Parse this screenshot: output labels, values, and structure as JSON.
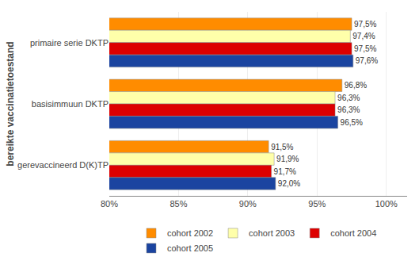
{
  "chart_data": {
    "type": "bar",
    "orientation": "horizontal",
    "categories": [
      "primaire serie DKTP",
      "basisimmuun DKTP",
      "gerevaccineerd D(K)TP"
    ],
    "series": [
      {
        "name": "cohort 2002",
        "color": "#FF8C00",
        "values": [
          97.5,
          96.8,
          91.5
        ],
        "value_labels": [
          "97,5%",
          "96,8%",
          "91,5%"
        ]
      },
      {
        "name": "cohort 2003",
        "color": "#FFFFAA",
        "values": [
          97.4,
          96.3,
          91.9
        ],
        "value_labels": [
          "97,4%",
          "96,3%",
          "91,9%"
        ]
      },
      {
        "name": "cohort 2004",
        "color": "#DD0000",
        "values": [
          97.5,
          96.3,
          91.7
        ],
        "value_labels": [
          "97,5%",
          "96,3%",
          "91,7%"
        ]
      },
      {
        "name": "cohort 2005",
        "color": "#1B44A0",
        "values": [
          97.6,
          96.5,
          92.0
        ],
        "value_labels": [
          "97,6%",
          "96,5%",
          "92,0%"
        ]
      }
    ],
    "xlim": [
      80,
      101.5
    ],
    "xticks": [
      {
        "value": 80,
        "label": "80%"
      },
      {
        "value": 85,
        "label": "85%"
      },
      {
        "value": 90,
        "label": "90%"
      },
      {
        "value": 95,
        "label": "95%"
      },
      {
        "value": 100,
        "label": "100%"
      }
    ],
    "ylabel": "bereikte vaccinatietoestand",
    "grid": true,
    "legend": "bottom",
    "data_labels": true
  }
}
